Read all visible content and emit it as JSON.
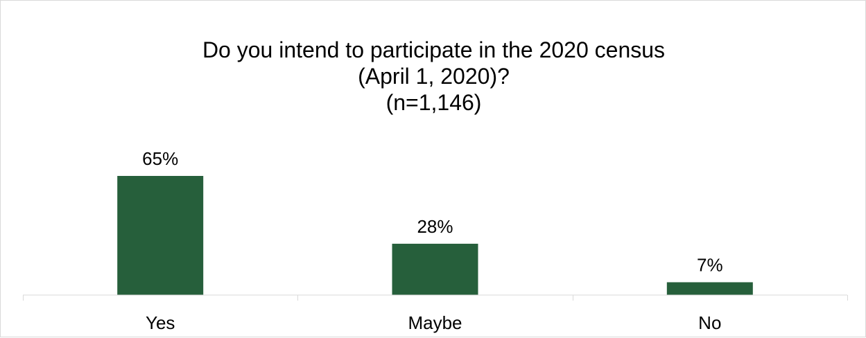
{
  "chart_data": {
    "type": "bar",
    "title_lines": [
      "Do you intend to participate in the 2020 census",
      "(April 1, 2020)?",
      "(n=1,146)"
    ],
    "categories": [
      "Yes",
      "Maybe",
      "No"
    ],
    "values": [
      65,
      28,
      7
    ],
    "data_labels": [
      "65%",
      "28%",
      "7%"
    ],
    "unit": "%",
    "ylim": [
      0,
      65
    ],
    "grid": false,
    "legend": "none",
    "bar_color": "#265F3B"
  }
}
